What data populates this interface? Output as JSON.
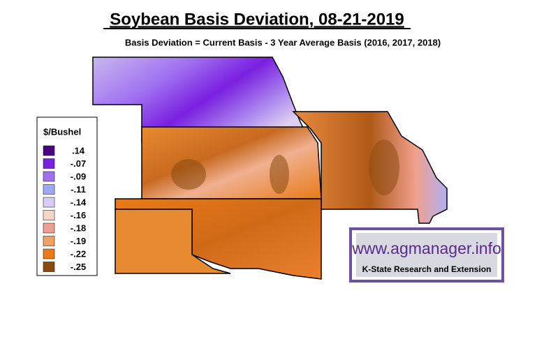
{
  "header": {
    "title": "Soybean Basis Deviation, 08-21-2019",
    "subtitle": "Basis Deviation = Current Basis - 3 Year Average Basis (2016, 2017, 2018)"
  },
  "legend": {
    "title": "$/Bushel",
    "entries": [
      {
        "label": ".14",
        "color": "#4b0082"
      },
      {
        "label": "-.07",
        "color": "#7a1fe0"
      },
      {
        "label": "-.09",
        "color": "#a070f0"
      },
      {
        "label": "-.11",
        "color": "#9fa8f5"
      },
      {
        "label": "-.14",
        "color": "#d8cdf5"
      },
      {
        "label": "-.16",
        "color": "#f5d6c8"
      },
      {
        "label": "-.18",
        "color": "#f0a090"
      },
      {
        "label": "-.19",
        "color": "#f0a060"
      },
      {
        "label": "-.22",
        "color": "#e87a18"
      },
      {
        "label": "-.25",
        "color": "#8a4a10"
      }
    ]
  },
  "logo": {
    "url": "www.agmanager.info",
    "org": "K-State Research and Extension"
  }
}
